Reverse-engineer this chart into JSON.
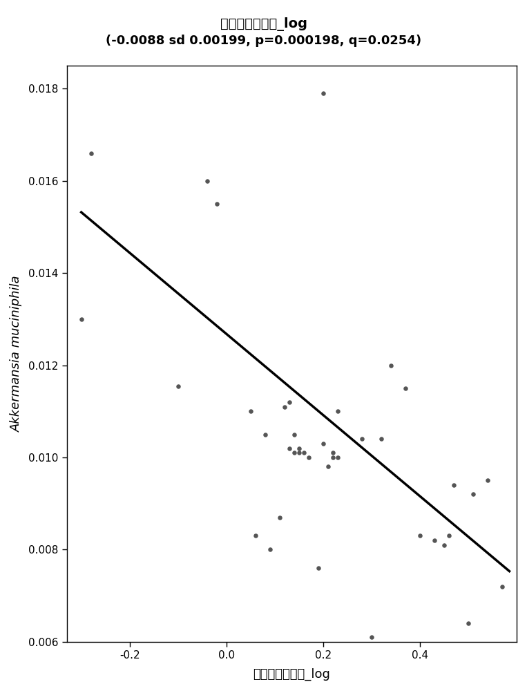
{
  "title_line1": "胵岛素抗抗指数_log",
  "title_line2": "(-0.0088 sd 0.00199, p=0.000198, q=0.0254)",
  "xlabel": "胵岛素抗抗指数_log",
  "ylabel": "Akkermansia muciniphila",
  "xlim": [
    -0.33,
    0.6
  ],
  "ylim": [
    0.006,
    0.0185
  ],
  "xticks": [
    -0.2,
    0.0,
    0.2,
    0.4
  ],
  "yticks": [
    0.006,
    0.008,
    0.01,
    0.012,
    0.014,
    0.016,
    0.018
  ],
  "scatter_x": [
    -0.3,
    -0.1,
    0.2,
    -0.28,
    -0.04,
    -0.02,
    0.05,
    0.08,
    0.12,
    0.13,
    0.14,
    0.14,
    0.15,
    0.15,
    0.16,
    0.17,
    0.2,
    0.21,
    0.22,
    0.22,
    0.23,
    0.28,
    0.32,
    0.34,
    0.37,
    0.4,
    0.43,
    0.45,
    0.46,
    0.47,
    0.5,
    0.51,
    0.54,
    0.57,
    0.13,
    0.06,
    0.09,
    0.19,
    0.11,
    0.23,
    0.3
  ],
  "scatter_y": [
    0.013,
    0.01155,
    0.0179,
    0.0166,
    0.016,
    0.0155,
    0.011,
    0.0105,
    0.0111,
    0.0112,
    0.0105,
    0.0101,
    0.0101,
    0.0102,
    0.0101,
    0.01,
    0.0103,
    0.0098,
    0.0101,
    0.01,
    0.01,
    0.0104,
    0.0104,
    0.012,
    0.0115,
    0.0083,
    0.0082,
    0.0081,
    0.0083,
    0.0094,
    0.0064,
    0.0092,
    0.0095,
    0.0072,
    0.0102,
    0.0083,
    0.008,
    0.0076,
    0.0087,
    0.011,
    0.0061
  ],
  "slope": -0.0088,
  "intercept": 0.01268,
  "line_x_start": -0.3,
  "line_x_end": 0.585,
  "line_color": "#000000",
  "scatter_color": "#555555",
  "scatter_size": 22,
  "bg_color": "#ffffff",
  "title_fontsize": 14,
  "subtitle_fontsize": 13,
  "label_fontsize": 13,
  "tick_fontsize": 11
}
